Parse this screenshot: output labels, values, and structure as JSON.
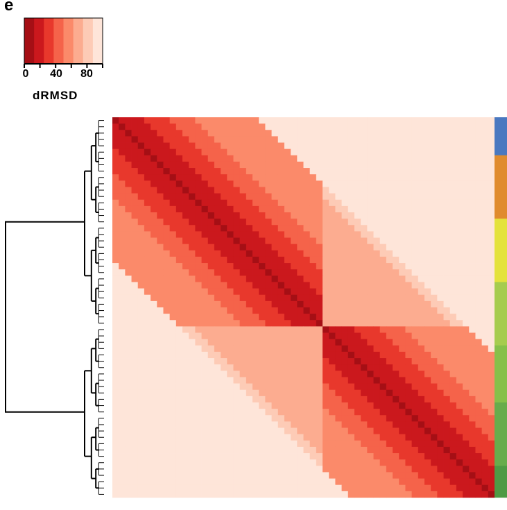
{
  "panel_label": "e",
  "chart_data": {
    "type": "heatmap",
    "title": "",
    "n_items": 60,
    "color_scale": {
      "label": "dRMSD",
      "min": 0,
      "max": 100,
      "ticks": [
        0,
        40,
        80
      ],
      "tick_labels": [
        "0",
        "40",
        "80"
      ],
      "bins": [
        0,
        12.5,
        25,
        37.5,
        50,
        62.5,
        75,
        87.5,
        100
      ],
      "colors": [
        "#a50f15",
        "#cb181d",
        "#e8382c",
        "#f5634a",
        "#fb8a6a",
        "#fcac90",
        "#fdcbb6",
        "#fee5d9"
      ]
    },
    "pattern": {
      "description_free": true,
      "cluster_boundary_index": 33,
      "within_cluster_max": 62,
      "between_cluster_value": 95
    },
    "dendrogram": {
      "top_split_index": 33,
      "position": "left"
    },
    "group_bar": {
      "colors": [
        "#4a78c0",
        "#e08b2e",
        "#e4e23c",
        "#a6cc4e",
        "#86c04a",
        "#68ac4c",
        "#4f9a45"
      ],
      "segment_sizes": [
        6,
        10,
        10,
        10,
        9,
        10,
        5
      ]
    }
  }
}
